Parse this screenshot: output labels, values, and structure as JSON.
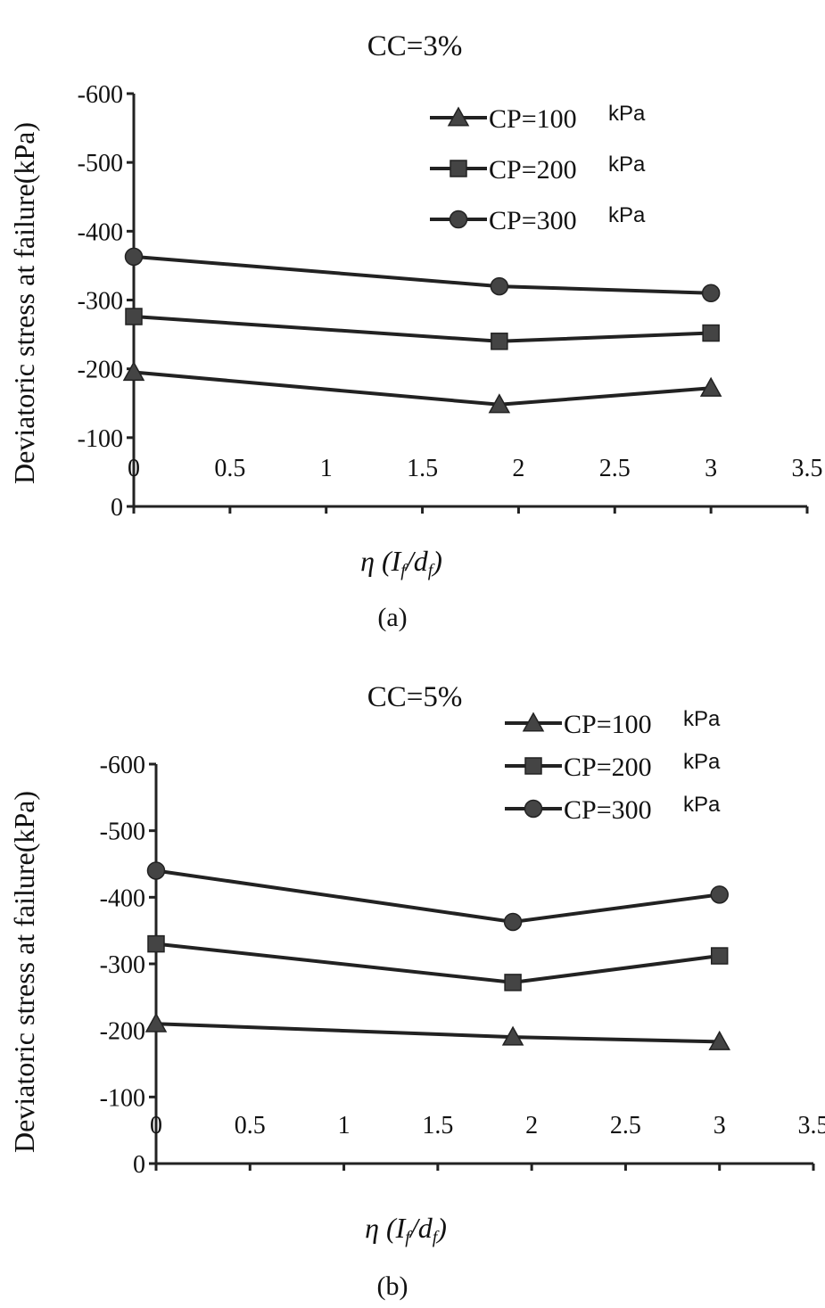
{
  "chart_data": [
    {
      "type": "line",
      "title": "CC=3%",
      "ylabel": "Deviatoric stress at failure(kPa)",
      "xlabel": "η (I_f/d_f)",
      "xlabel_parts": {
        "eta": "η",
        "num": "I",
        "num_sub": "f",
        "den": "d",
        "den_sub": "f"
      },
      "caption": "(a)",
      "xlim": [
        0,
        3.5
      ],
      "ylim": [
        0,
        -600
      ],
      "x_ticks": [
        "0",
        "0.5",
        "1",
        "1.5",
        "2",
        "2.5",
        "3",
        "3.5"
      ],
      "y_ticks": [
        "0",
        "-100",
        "-200",
        "-300",
        "-400",
        "-500",
        "-600"
      ],
      "legend_position": "top-right",
      "series": [
        {
          "name": "CP=100",
          "unit": "kPa",
          "marker": "triangle",
          "x": [
            0,
            1.9,
            3
          ],
          "y": [
            -195,
            -148,
            -172
          ]
        },
        {
          "name": "CP=200",
          "unit": "kPa",
          "marker": "square",
          "x": [
            0,
            1.9,
            3
          ],
          "y": [
            -276,
            -240,
            -252
          ]
        },
        {
          "name": "CP=300",
          "unit": "kPa",
          "marker": "circle",
          "x": [
            0,
            1.9,
            3
          ],
          "y": [
            -363,
            -320,
            -310
          ]
        }
      ]
    },
    {
      "type": "line",
      "title": "CC=5%",
      "ylabel": "Deviatoric stress at failure(kPa)",
      "xlabel": "η (I_f/d_f)",
      "xlabel_parts": {
        "eta": "η",
        "num": "I",
        "num_sub": "f",
        "den": "d",
        "den_sub": "f"
      },
      "caption": "(b)",
      "xlim": [
        0,
        3.5
      ],
      "ylim": [
        0,
        -600
      ],
      "x_ticks": [
        "0",
        "0.5",
        "1",
        "1.5",
        "2",
        "2.5",
        "3",
        "3.5"
      ],
      "y_ticks": [
        "0",
        "-100",
        "-200",
        "-300",
        "-400",
        "-500",
        "-600"
      ],
      "legend_position": "top-right",
      "series": [
        {
          "name": "CP=100",
          "unit": "kPa",
          "marker": "triangle",
          "x": [
            0,
            1.9,
            3
          ],
          "y": [
            -210,
            -190,
            -183
          ]
        },
        {
          "name": "CP=200",
          "unit": "kPa",
          "marker": "square",
          "x": [
            0,
            1.9,
            3
          ],
          "y": [
            -330,
            -272,
            -312
          ]
        },
        {
          "name": "CP=300",
          "unit": "kPa",
          "marker": "circle",
          "x": [
            0,
            1.9,
            3
          ],
          "y": [
            -440,
            -363,
            -404
          ]
        }
      ]
    }
  ]
}
